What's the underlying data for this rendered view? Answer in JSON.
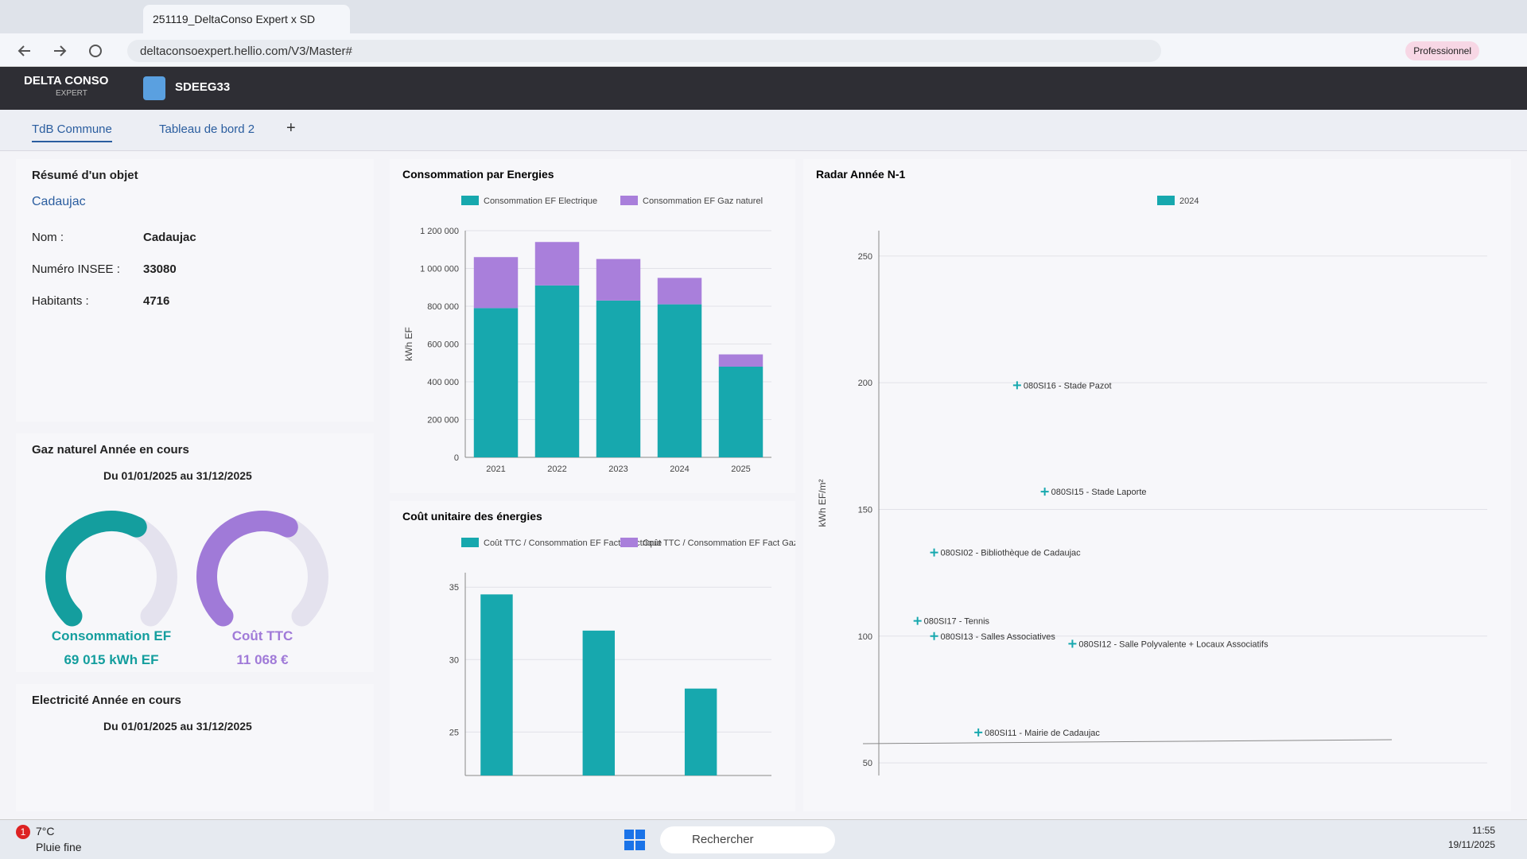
{
  "browser": {
    "tab_title": "251119_DeltaConso Expert x SD",
    "url": "deltaconsoexpert.hellio.com/V3/Master#",
    "profile": "Professionnel"
  },
  "app": {
    "logo": "DELTA CONSO",
    "logo_sub": "EXPERT",
    "organisation": "SDEEG33",
    "tabs": [
      "TdB Commune",
      "Tableau de bord 2"
    ],
    "add_tab": "+"
  },
  "summary": {
    "title": "Résumé d'un objet",
    "object": "Cadaujac",
    "fields": [
      {
        "label": "Nom :",
        "value": "Cadaujac"
      },
      {
        "label": "Numéro INSEE :",
        "value": "33080"
      },
      {
        "label": "Habitants :",
        "value": "4716"
      }
    ]
  },
  "gas_panel": {
    "title": "Gaz naturel Année en cours",
    "period": "Du 01/01/2025 au 31/12/2025",
    "gauges": [
      {
        "label": "Consommation EF",
        "value": 69015,
        "value_label": "69 015 kWh EF",
        "color": "#149e9e"
      },
      {
        "label": "Coût TTC",
        "value": 11068,
        "value_label": "11 068 €",
        "color": "#a07ad8"
      }
    ]
  },
  "electricity_panel": {
    "title": "Electricité Année en cours",
    "period": "Du 01/01/2025 au 31/12/2025"
  },
  "chart_data": [
    {
      "type": "bar",
      "title": "Consommation par Energies",
      "stacked": true,
      "y_label": "kWh EF",
      "categories": [
        "2021",
        "2022",
        "2023",
        "2024",
        "2025"
      ],
      "series": [
        {
          "name": "Consommation EF Electrique",
          "color": "#17a8ae",
          "values": [
            790000,
            910000,
            830000,
            810000,
            480000
          ]
        },
        {
          "name": "Consommation EF Gaz naturel",
          "color": "#a97fdb",
          "values": [
            270000,
            230000,
            220000,
            140000,
            65000
          ]
        }
      ],
      "ylim": [
        0,
        1200000
      ],
      "yticks": [
        0,
        {
          "value": 200000,
          "label": "200 000"
        },
        {
          "value": 400000,
          "label": "400 000"
        },
        {
          "value": 600000,
          "label": "600 000"
        },
        {
          "value": 800000,
          "label": "800 000"
        },
        {
          "value": 1000000,
          "label": "1 000 000"
        },
        {
          "value": 1200000,
          "label": "1 200 000"
        }
      ]
    },
    {
      "type": "bar",
      "title": "Coût unitaire des énergies",
      "stacked": false,
      "categories": [
        null,
        null,
        null
      ],
      "series": [
        {
          "name": "Coût TTC / Consommation EF Fact Electrique",
          "color": "#17a8ae",
          "values": [
            34.5,
            32,
            28
          ]
        },
        {
          "name": "Coût TTC / Consommation EF Fact Gaz naturel",
          "color": "#a97fdb",
          "values": [
            null,
            null,
            null
          ]
        }
      ],
      "ylim": [
        22,
        36
      ],
      "yticks": [
        25,
        30,
        35
      ]
    },
    {
      "type": "scatter",
      "title": "Radar Année N-1",
      "y_label": "kWh EF/m²",
      "series": [
        {
          "name": "2024",
          "color": "#17a8ae",
          "x": [
            15,
            20,
            0,
            -3,
            0,
            25,
            8
          ],
          "values": [
            199,
            157,
            133,
            106,
            100,
            97,
            62
          ],
          "point_labels": [
            "080SI16 - Stade Pazot",
            "080SI15 - Stade Laporte",
            "080SI02 - Bibliothèque de Cadaujac",
            "080SI17 - Tennis",
            "080SI13 - Salles Associatives",
            "080SI12 - Salle Polyvalente + Locaux Associatifs",
            "080SI11 - Mairie de Cadaujac"
          ]
        }
      ],
      "xlim": [
        -10,
        100
      ],
      "ylim": [
        45,
        260
      ],
      "yticks": [
        50,
        100,
        150,
        200,
        250
      ]
    }
  ],
  "taskbar": {
    "search": "Rechercher",
    "temperature": "7°C",
    "weather": "Pluie fine",
    "badge": "1",
    "time": "11:55",
    "date": "19/11/2025"
  }
}
